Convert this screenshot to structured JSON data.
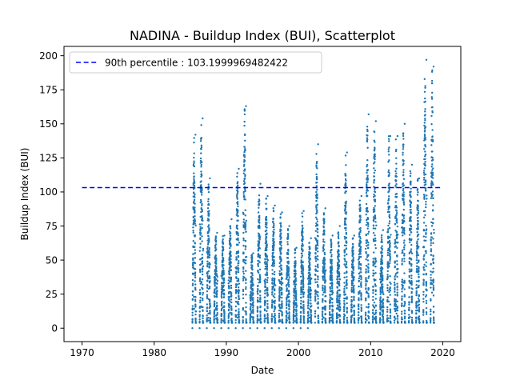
{
  "chart_data": {
    "type": "scatter",
    "title": "NADINA - Buildup Index (BUI), Scatterplot",
    "xlabel": "Date",
    "ylabel": "Buildup Index (BUI)",
    "xlim": [
      1967.5,
      2022.5
    ],
    "ylim": [
      -9.85,
      206.85
    ],
    "x_ticks": [
      1970,
      1980,
      1990,
      2000,
      2010,
      2020
    ],
    "x_tick_labels": [
      "1970",
      "1980",
      "1990",
      "2000",
      "2010",
      "2020"
    ],
    "y_ticks": [
      0,
      25,
      50,
      75,
      100,
      125,
      150,
      175,
      200
    ],
    "y_tick_labels": [
      "0",
      "25",
      "50",
      "75",
      "100",
      "125",
      "150",
      "175",
      "200"
    ],
    "grid": false,
    "legend": {
      "placement": "upper-left",
      "entries": [
        "90th percentile : 103.1999969482422"
      ]
    },
    "reference_line": {
      "name": "90th percentile : 103.1999969482422",
      "y": 103.1999969482422,
      "x_range": [
        1970,
        2020
      ],
      "style": "dashed",
      "color": "#0000ff"
    },
    "series": [
      {
        "color": "#1f77b4",
        "seasons": [
          {
            "year": 1985,
            "x_range": [
              1985.3,
              1985.8
            ],
            "peak": 142
          },
          {
            "year": 1986,
            "x_range": [
              1986.3,
              1986.8
            ],
            "peak": 154
          },
          {
            "year": 1987,
            "x_range": [
              1987.3,
              1987.8
            ],
            "peak": 110
          },
          {
            "year": 1988,
            "x_range": [
              1988.3,
              1988.8
            ],
            "peak": 70
          },
          {
            "year": 1989,
            "x_range": [
              1989.3,
              1989.8
            ],
            "peak": 68
          },
          {
            "year": 1990,
            "x_range": [
              1990.3,
              1990.8
            ],
            "peak": 80
          },
          {
            "year": 1991,
            "x_range": [
              1991.3,
              1991.8
            ],
            "peak": 117
          },
          {
            "year": 1992,
            "x_range": [
              1992.3,
              1992.8
            ],
            "peak": 163
          },
          {
            "year": 1993,
            "x_range": [
              1993.3,
              1993.8
            ],
            "peak": 55
          },
          {
            "year": 1994,
            "x_range": [
              1994.3,
              1994.8
            ],
            "peak": 106
          },
          {
            "year": 1995,
            "x_range": [
              1995.3,
              1995.8
            ],
            "peak": 97
          },
          {
            "year": 1996,
            "x_range": [
              1996.3,
              1996.8
            ],
            "peak": 90
          },
          {
            "year": 1997,
            "x_range": [
              1997.3,
              1997.8
            ],
            "peak": 85
          },
          {
            "year": 1998,
            "x_range": [
              1998.3,
              1998.8
            ],
            "peak": 75
          },
          {
            "year": 1999,
            "x_range": [
              1999.3,
              1999.8
            ],
            "peak": 59
          },
          {
            "year": 2000,
            "x_range": [
              2000.3,
              2000.8
            ],
            "peak": 86
          },
          {
            "year": 2001,
            "x_range": [
              2001.3,
              2001.8
            ],
            "peak": 66
          },
          {
            "year": 2002,
            "x_range": [
              2002.3,
              2002.8
            ],
            "peak": 135
          },
          {
            "year": 2003,
            "x_range": [
              2003.3,
              2003.8
            ],
            "peak": 88
          },
          {
            "year": 2004,
            "x_range": [
              2004.3,
              2004.8
            ],
            "peak": 68
          },
          {
            "year": 2005,
            "x_range": [
              2005.3,
              2005.8
            ],
            "peak": 75
          },
          {
            "year": 2006,
            "x_range": [
              2006.3,
              2006.8
            ],
            "peak": 129
          },
          {
            "year": 2007,
            "x_range": [
              2007.3,
              2007.8
            ],
            "peak": 68
          },
          {
            "year": 2008,
            "x_range": [
              2008.3,
              2008.8
            ],
            "peak": 97
          },
          {
            "year": 2009,
            "x_range": [
              2009.3,
              2009.8
            ],
            "peak": 157
          },
          {
            "year": 2010,
            "x_range": [
              2010.3,
              2010.8
            ],
            "peak": 152
          },
          {
            "year": 2011,
            "x_range": [
              2011.3,
              2011.8
            ],
            "peak": 72
          },
          {
            "year": 2012,
            "x_range": [
              2012.3,
              2012.8
            ],
            "peak": 141
          },
          {
            "year": 2013,
            "x_range": [
              2013.3,
              2013.8
            ],
            "peak": 141
          },
          {
            "year": 2014,
            "x_range": [
              2014.3,
              2014.8
            ],
            "peak": 150
          },
          {
            "year": 2015,
            "x_range": [
              2015.3,
              2015.8
            ],
            "peak": 120
          },
          {
            "year": 2016,
            "x_range": [
              2016.3,
              2016.8
            ],
            "peak": 110
          },
          {
            "year": 2017,
            "x_range": [
              2017.3,
              2017.8
            ],
            "peak": 197
          },
          {
            "year": 2018,
            "x_range": [
              2018.3,
              2018.8
            ],
            "peak": 192
          }
        ],
        "zero_points": [
          1985.3,
          1986.3,
          1987.3,
          1988.3,
          1989.3,
          1990.3,
          1991.3,
          1992.3,
          1993.3,
          1994.3,
          1995.3,
          1996.3,
          1997.3,
          1998.3,
          1999.3,
          2000.3,
          2001.3
        ]
      }
    ]
  }
}
